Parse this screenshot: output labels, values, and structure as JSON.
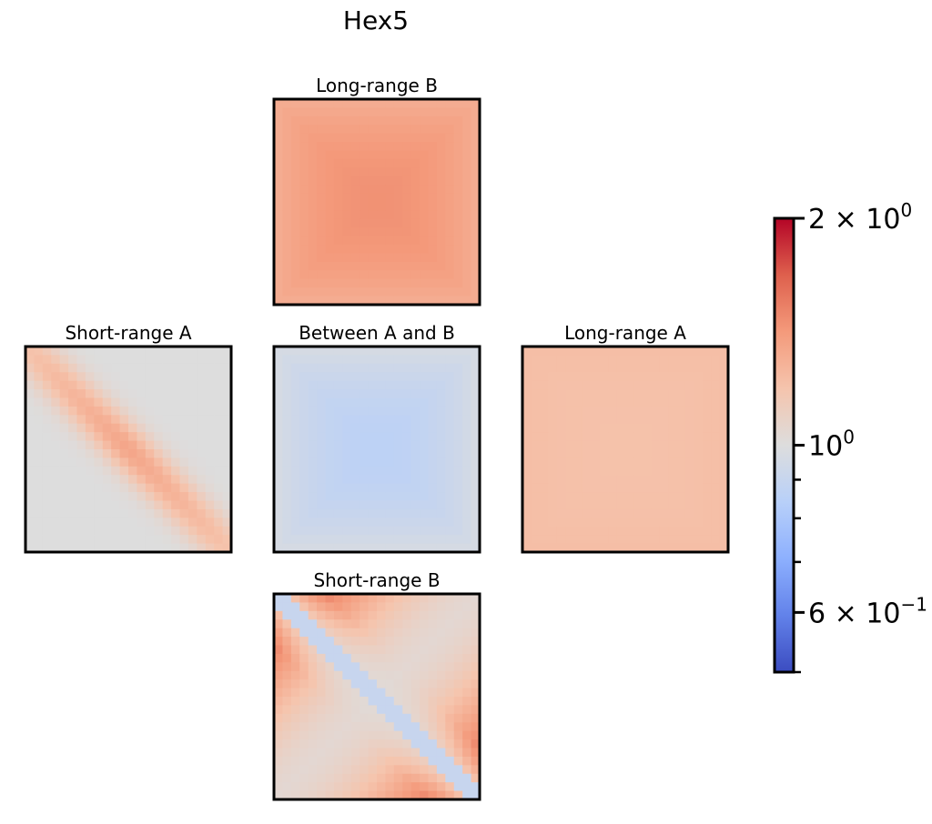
{
  "chart_data": {
    "type": "heatmap",
    "title": "Hex5",
    "colormap": "coolwarm",
    "color_scale": "log",
    "color_range": [
      0.5,
      2.0
    ],
    "panels": [
      {
        "id": "long-range-b",
        "title": "Long-range B",
        "position": "top-center",
        "pattern": "uniform",
        "params": {
          "center": 1.45,
          "edge": 1.3
        }
      },
      {
        "id": "short-range-a",
        "title": "Short-range A",
        "position": "middle-left",
        "pattern": "diagonal-band",
        "params": {
          "base": 1.0,
          "band": 1.35
        }
      },
      {
        "id": "between-a-and-b",
        "title": "Between A and B",
        "position": "middle-center",
        "pattern": "uniform",
        "params": {
          "center": 0.86,
          "edge": 0.97
        }
      },
      {
        "id": "long-range-a",
        "title": "Long-range A",
        "position": "middle-right",
        "pattern": "uniform",
        "params": {
          "center": 1.2,
          "edge": 1.22
        }
      },
      {
        "id": "short-range-b",
        "title": "Short-range B",
        "position": "bottom-center",
        "pattern": "anti-diagonal",
        "params": {
          "diag": 0.9,
          "corner": 1.6
        }
      }
    ],
    "colorbar": {
      "position": "right",
      "major_ticks": [
        {
          "value": 2.0,
          "label": "2 × 10",
          "exponent": "0"
        },
        {
          "value": 1.0,
          "label": "10",
          "exponent": "0"
        },
        {
          "value": 0.6,
          "label": "6 × 10",
          "exponent": "−1"
        }
      ],
      "minor_ticks": [
        0.9,
        0.8,
        0.7,
        0.5
      ]
    }
  }
}
